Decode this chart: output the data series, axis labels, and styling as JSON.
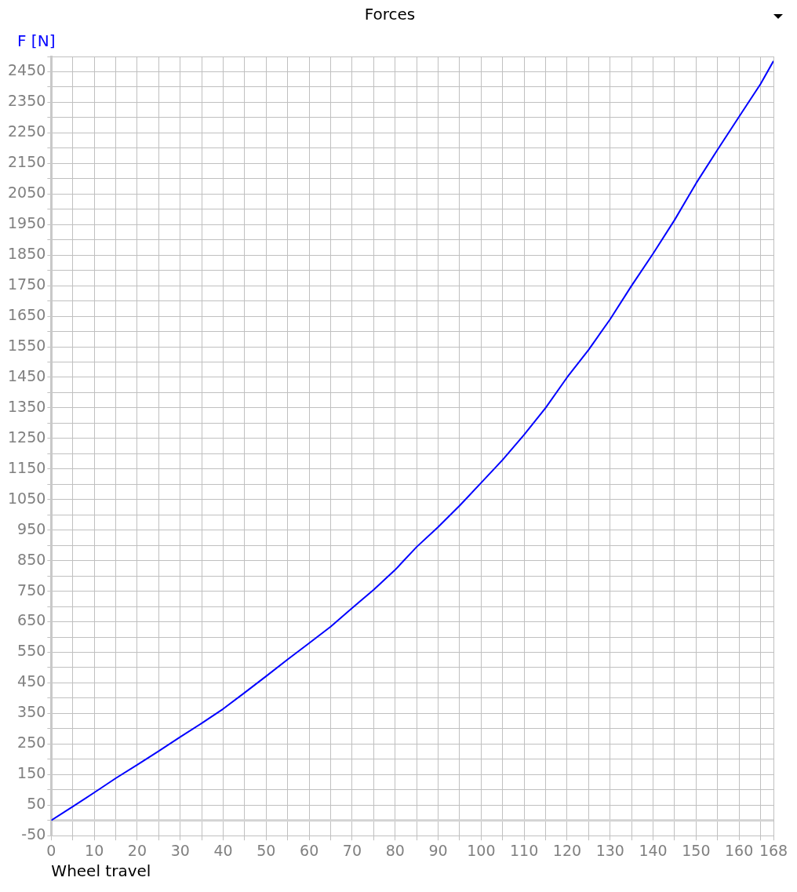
{
  "chart_data": {
    "type": "line",
    "title": "Forces",
    "xlabel": "Wheel travel",
    "ylabel": "F [N]",
    "x": [
      0,
      5,
      10,
      15,
      20,
      25,
      30,
      35,
      40,
      45,
      50,
      55,
      60,
      65,
      70,
      75,
      80,
      85,
      90,
      95,
      100,
      105,
      110,
      115,
      120,
      125,
      130,
      135,
      140,
      145,
      150,
      155,
      160,
      165,
      168
    ],
    "series": [
      {
        "color": "#0000ff",
        "values": [
          0,
          45,
          91,
          138,
          182,
          227,
          273,
          318,
          365,
          418,
          472,
          527,
          580,
          634,
          695,
          755,
          820,
          895,
          960,
          1030,
          1105,
          1180,
          1262,
          1350,
          1450,
          1540,
          1640,
          1750,
          1855,
          1965,
          2085,
          2195,
          2303,
          2410,
          2485
        ]
      }
    ],
    "xlim": [
      0,
      168
    ],
    "xticks": [
      0,
      {
        "value": 5,
        "label": null
      },
      10,
      {
        "value": 15,
        "label": null
      },
      20,
      {
        "value": 25,
        "label": null
      },
      30,
      {
        "value": 35,
        "label": null
      },
      40,
      {
        "value": 45,
        "label": null
      },
      50,
      {
        "value": 55,
        "label": null
      },
      60,
      {
        "value": 65,
        "label": null
      },
      70,
      {
        "value": 75,
        "label": null
      },
      80,
      {
        "value": 85,
        "label": null
      },
      90,
      {
        "value": 95,
        "label": null
      },
      100,
      {
        "value": 105,
        "label": null
      },
      110,
      {
        "value": 115,
        "label": null
      },
      120,
      {
        "value": 125,
        "label": null
      },
      130,
      {
        "value": 135,
        "label": null
      },
      140,
      {
        "value": 145,
        "label": null
      },
      150,
      {
        "value": 155,
        "label": null
      },
      160,
      {
        "value": 165,
        "label": null
      },
      168
    ],
    "ylim": [
      -50,
      2500
    ],
    "yticks": [
      -50,
      {
        "value": 0,
        "label": null
      },
      50,
      {
        "value": 100,
        "label": null
      },
      150,
      {
        "value": 200,
        "label": null
      },
      250,
      {
        "value": 300,
        "label": null
      },
      350,
      {
        "value": 400,
        "label": null
      },
      450,
      {
        "value": 500,
        "label": null
      },
      550,
      {
        "value": 600,
        "label": null
      },
      650,
      {
        "value": 700,
        "label": null
      },
      750,
      {
        "value": 800,
        "label": null
      },
      850,
      {
        "value": 900,
        "label": null
      },
      950,
      {
        "value": 1000,
        "label": null
      },
      1050,
      {
        "value": 1100,
        "label": null
      },
      1150,
      {
        "value": 1200,
        "label": null
      },
      1250,
      {
        "value": 1300,
        "label": null
      },
      1350,
      {
        "value": 1400,
        "label": null
      },
      1450,
      {
        "value": 1500,
        "label": null
      },
      1550,
      {
        "value": 1600,
        "label": null
      },
      1650,
      {
        "value": 1700,
        "label": null
      },
      1750,
      {
        "value": 1800,
        "label": null
      },
      1850,
      {
        "value": 1900,
        "label": null
      },
      1950,
      {
        "value": 2000,
        "label": null
      },
      2050,
      {
        "value": 2100,
        "label": null
      },
      2150,
      {
        "value": 2200,
        "label": null
      },
      2250,
      {
        "value": 2300,
        "label": null
      },
      2350,
      {
        "value": 2400,
        "label": null
      },
      2450,
      {
        "value": 2500,
        "label": null
      }
    ],
    "ref_lines": [
      {
        "axis": "y",
        "value": 0,
        "color": "#d3d3d3"
      }
    ],
    "grid": true,
    "legend": false,
    "marker": "none",
    "line_style": "solid"
  }
}
